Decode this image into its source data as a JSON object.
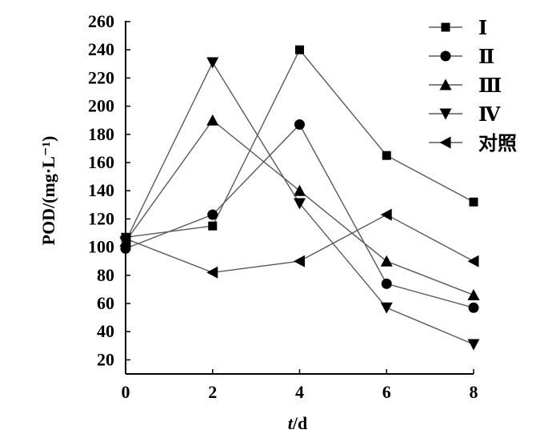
{
  "chart_data": {
    "type": "line",
    "title": "",
    "xlabel_italic": "t",
    "xlabel_rest": "/d",
    "ylabel": "POD/(mg·L⁻¹)",
    "xlim": [
      0,
      8
    ],
    "ylim": [
      10,
      260
    ],
    "x_ticks": [
      0,
      2,
      4,
      6,
      8
    ],
    "y_ticks": [
      20,
      40,
      60,
      80,
      100,
      120,
      140,
      160,
      180,
      200,
      220,
      240,
      260
    ],
    "grid": false,
    "legend_position": "top-right",
    "line_color": "#5a5a5a",
    "marker_color": "#000000",
    "x": [
      0,
      2,
      4,
      6,
      8
    ],
    "series": [
      {
        "name": "Ⅰ",
        "marker": "square",
        "values": [
          107,
          115,
          240,
          165,
          132
        ]
      },
      {
        "name": "Ⅱ",
        "marker": "circle",
        "values": [
          99,
          123,
          187,
          74,
          57
        ]
      },
      {
        "name": "Ⅲ",
        "marker": "triangle-up",
        "values": [
          104,
          190,
          140,
          90,
          66
        ]
      },
      {
        "name": "Ⅳ",
        "marker": "triangle-down",
        "values": [
          104,
          231,
          131,
          57,
          31
        ]
      },
      {
        "name": "对照",
        "marker": "triangle-left",
        "values": [
          106,
          82,
          90,
          123,
          90
        ]
      }
    ]
  }
}
